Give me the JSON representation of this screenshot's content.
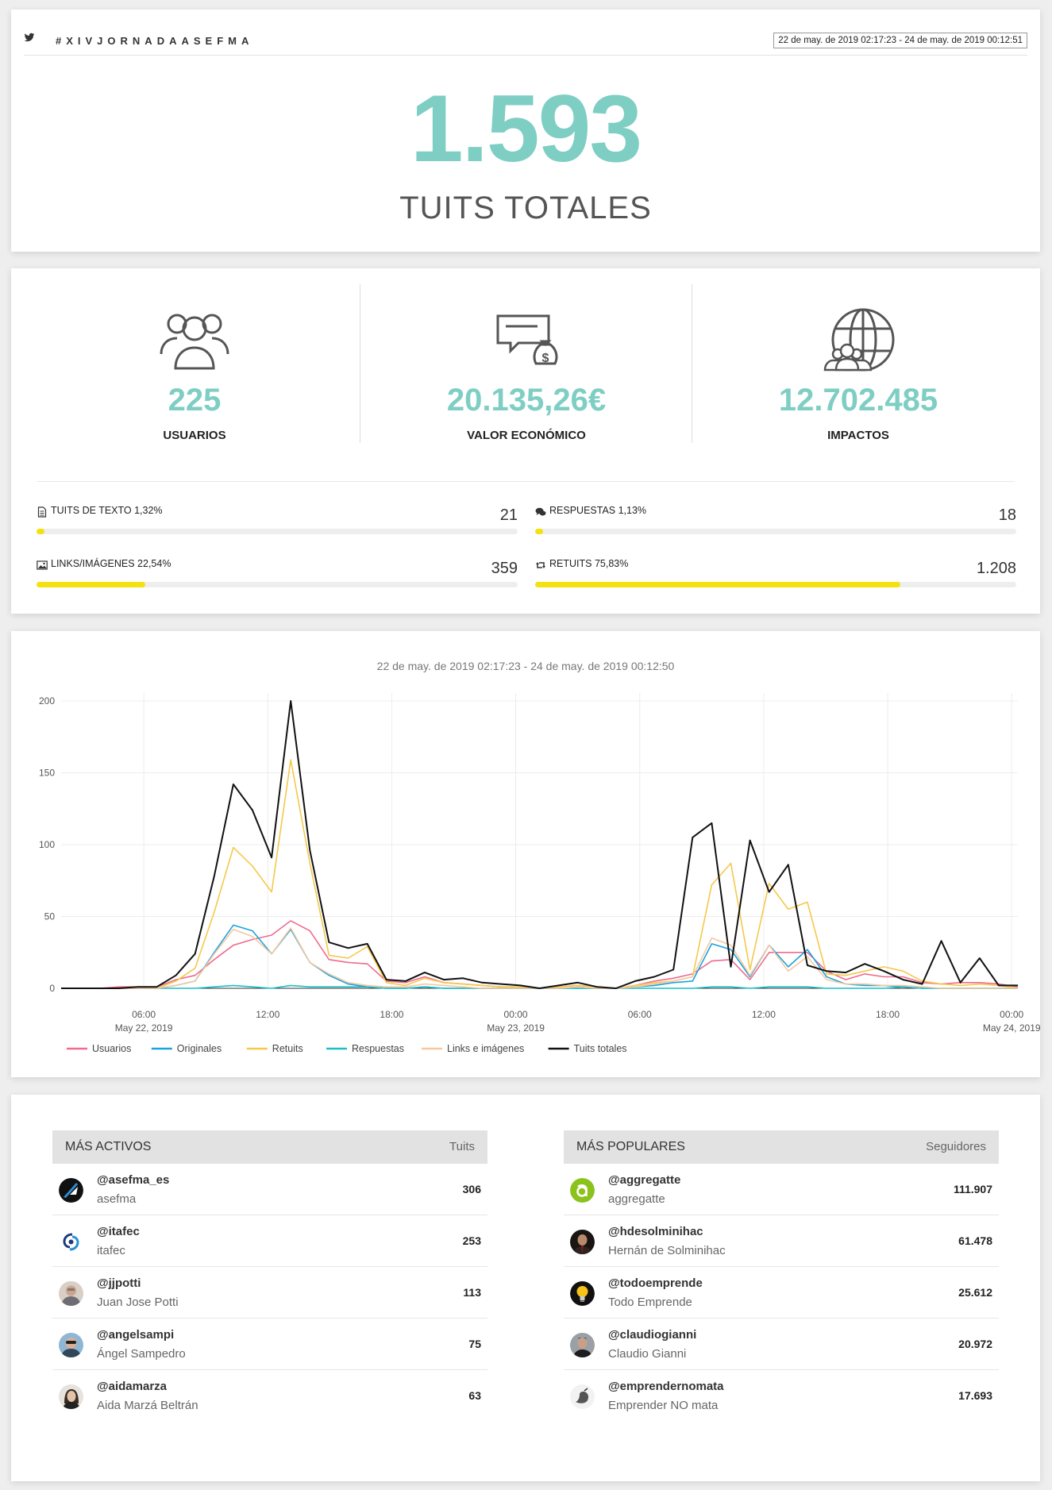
{
  "header": {
    "hashtag": "#XIVJORNADAASEFMA",
    "date_range": "22 de may. de 2019 02:17:23 - 24 de may. de 2019 00:12:51",
    "icons": [
      "twitter-icon",
      "calendar-icon"
    ]
  },
  "hero": {
    "total_tweets": "1.593",
    "total_label": "TUITS TOTALES"
  },
  "kpis": [
    {
      "value": "225",
      "label": "USUARIOS",
      "icon": "users-icon"
    },
    {
      "value": "20.135,26€",
      "label": "VALOR ECONÓMICO",
      "icon": "money-chat-icon"
    },
    {
      "value": "12.702.485",
      "label": "IMPACTOS",
      "icon": "globe-users-icon"
    }
  ],
  "stats": [
    {
      "label": "TUITS DE TEXTO 1,32%",
      "value": "21",
      "percent": 1.32,
      "icon": "document-icon"
    },
    {
      "label": "RESPUESTAS 1,13%",
      "value": "18",
      "percent": 1.13,
      "icon": "comments-icon"
    },
    {
      "label": "LINKS/IMÁGENES 22,54%",
      "value": "359",
      "percent": 22.54,
      "icon": "image-icon"
    },
    {
      "label": "RETUITS 75,83%",
      "value": "1.208",
      "percent": 75.83,
      "icon": "retweet-icon"
    }
  ],
  "colors": {
    "accent": "#7ecec4",
    "bar": "#f3e210",
    "usuarios": "#f06b8d",
    "originales": "#1ba3dd",
    "retuits": "#f5c84a",
    "respuestas": "#1cbfc6",
    "links": "#f7c8a0",
    "totales": "#111111"
  },
  "chart_data": {
    "type": "line",
    "title": "22 de may. de 2019 02:17:23 - 24 de may. de 2019 00:12:50",
    "x_start": "2019-05-22 02:00",
    "x_end": "2019-05-24 00:00",
    "x_step_hours": 1,
    "ylim": [
      0,
      200
    ],
    "yticks": [
      "0",
      "50",
      "100",
      "150",
      "200"
    ],
    "xticks": [
      {
        "hour": 6,
        "line1": "06:00",
        "line2": "May 22, 2019"
      },
      {
        "hour": 12,
        "line1": "12:00",
        "line2": ""
      },
      {
        "hour": 18,
        "line1": "18:00",
        "line2": ""
      },
      {
        "hour": 24,
        "line1": "00:00",
        "line2": "May 23, 2019"
      },
      {
        "hour": 30,
        "line1": "06:00",
        "line2": ""
      },
      {
        "hour": 36,
        "line1": "12:00",
        "line2": ""
      },
      {
        "hour": 42,
        "line1": "18:00",
        "line2": ""
      },
      {
        "hour": 48,
        "line1": "00:00",
        "line2": "May 24, 2019"
      }
    ],
    "grid": true,
    "legend_position": "bottom-left",
    "series": [
      {
        "name": "Usuarios",
        "color": "#f06b8d",
        "values": [
          0,
          0,
          0,
          1,
          1,
          1,
          6,
          9,
          20,
          30,
          34,
          37,
          47,
          40,
          20,
          18,
          17,
          5,
          4,
          8,
          4,
          3,
          2,
          1,
          1,
          0,
          1,
          2,
          1,
          0,
          2,
          5,
          7,
          10,
          19,
          20,
          6,
          25,
          25,
          25,
          12,
          6,
          10,
          8,
          8,
          4,
          3,
          4,
          4,
          3,
          1
        ]
      },
      {
        "name": "Originales",
        "color": "#1ba3dd",
        "values": [
          0,
          0,
          0,
          0,
          0,
          0,
          2,
          5,
          25,
          44,
          40,
          24,
          41,
          18,
          9,
          3,
          1,
          0,
          0,
          1,
          0,
          0,
          0,
          0,
          0,
          0,
          0,
          0,
          0,
          0,
          1,
          2,
          4,
          5,
          31,
          27,
          8,
          30,
          15,
          27,
          8,
          3,
          2,
          2,
          1,
          0,
          0,
          0,
          0,
          0,
          0
        ]
      },
      {
        "name": "Retuits",
        "color": "#f5c84a",
        "values": [
          0,
          0,
          0,
          0,
          0,
          0,
          5,
          14,
          53,
          98,
          85,
          67,
          159,
          87,
          23,
          21,
          29,
          4,
          2,
          7,
          4,
          3,
          2,
          1,
          1,
          0,
          1,
          2,
          1,
          0,
          2,
          4,
          5,
          8,
          72,
          87,
          13,
          73,
          55,
          60,
          10,
          9,
          12,
          15,
          12,
          5,
          3,
          2,
          3,
          2,
          0
        ]
      },
      {
        "name": "Respuestas",
        "color": "#1cbfc6",
        "values": [
          0,
          0,
          0,
          0,
          0,
          0,
          0,
          0,
          1,
          2,
          1,
          0,
          2,
          1,
          1,
          1,
          1,
          0,
          0,
          1,
          0,
          0,
          0,
          0,
          0,
          0,
          0,
          0,
          0,
          0,
          0,
          0,
          0,
          0,
          1,
          1,
          0,
          1,
          1,
          1,
          0,
          0,
          0,
          0,
          1,
          0,
          0,
          0,
          0,
          0,
          0
        ]
      },
      {
        "name": "Links e imágenes",
        "color": "#f7c8a0",
        "values": [
          0,
          0,
          0,
          0,
          0,
          0,
          2,
          5,
          24,
          41,
          36,
          24,
          42,
          18,
          10,
          4,
          2,
          1,
          1,
          3,
          2,
          1,
          0,
          0,
          0,
          0,
          0,
          1,
          0,
          0,
          1,
          3,
          5,
          8,
          35,
          30,
          9,
          30,
          12,
          22,
          6,
          3,
          3,
          2,
          2,
          1,
          0,
          0,
          0,
          0,
          0
        ]
      },
      {
        "name": "Tuits totales",
        "color": "#111111",
        "values": [
          0,
          0,
          0,
          0,
          1,
          1,
          9,
          24,
          78,
          142,
          124,
          91,
          200,
          96,
          32,
          28,
          31,
          6,
          5,
          11,
          6,
          7,
          4,
          3,
          2,
          0,
          2,
          4,
          1,
          0,
          5,
          8,
          13,
          105,
          115,
          15,
          103,
          67,
          86,
          16,
          12,
          11,
          17,
          12,
          6,
          3,
          33,
          4,
          21,
          2,
          2
        ]
      }
    ]
  },
  "tables": {
    "active": {
      "title": "MÁS ACTIVOS",
      "col": "Tuits",
      "rows": [
        {
          "handle": "@asefma_es",
          "name": "asefma",
          "count": "306"
        },
        {
          "handle": "@itafec",
          "name": "itafec",
          "count": "253"
        },
        {
          "handle": "@jjpotti",
          "name": "Juan Jose Potti",
          "count": "113"
        },
        {
          "handle": "@angelsampi",
          "name": "Ángel Sampedro",
          "count": "75"
        },
        {
          "handle": "@aidamarza",
          "name": "Aida Marzá Beltrán",
          "count": "63"
        }
      ]
    },
    "popular": {
      "title": "MÁS POPULARES",
      "col": "Seguidores",
      "rows": [
        {
          "handle": "@aggregatte",
          "name": "aggregatte",
          "count": "111.907"
        },
        {
          "handle": "@hdesolminihac",
          "name": "Hernán de Solminihac",
          "count": "61.478"
        },
        {
          "handle": "@todoemprende",
          "name": "Todo Emprende",
          "count": "25.612"
        },
        {
          "handle": "@claudiogianni",
          "name": "Claudio Gianni",
          "count": "20.972"
        },
        {
          "handle": "@emprendernomata",
          "name": "Emprender NO mata",
          "count": "17.693"
        }
      ]
    }
  }
}
